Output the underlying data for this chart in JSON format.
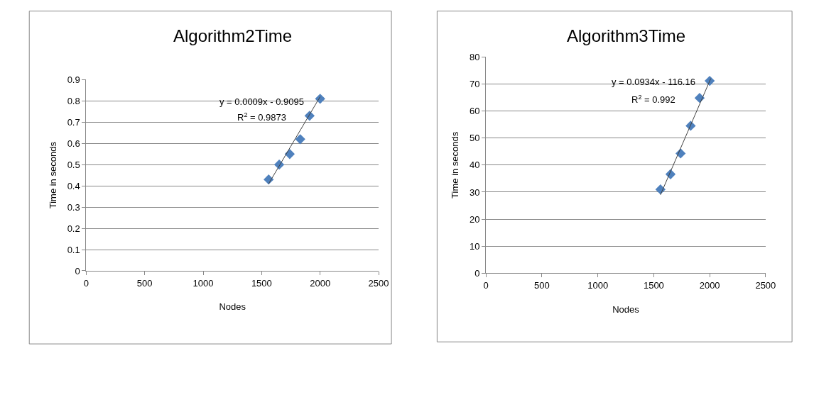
{
  "chart_data": [
    {
      "type": "scatter",
      "title": "Algorithm2Time",
      "xlabel": "Nodes",
      "ylabel": "Time in seconds",
      "xlim": [
        0,
        2500
      ],
      "xticks": [
        0,
        500,
        1000,
        1500,
        2000,
        2500
      ],
      "ylim": [
        0,
        0.9
      ],
      "yticks": [
        0,
        0.1,
        0.2,
        0.3,
        0.4,
        0.5,
        0.6,
        0.7,
        0.8,
        0.9
      ],
      "grid": "y",
      "marker": "diamond",
      "series": [
        {
          "color": "#4f81bd",
          "x": [
            1560,
            1650,
            1740,
            1830,
            1910,
            2000
          ],
          "values": [
            0.43,
            0.5,
            0.55,
            0.62,
            0.73,
            0.81
          ]
        },
        {
          "type": "line",
          "color": "#404040",
          "marker": "none",
          "x": [
            1560,
            2000
          ],
          "values": [
            0.41,
            0.82
          ]
        }
      ],
      "annotations": [
        "y = 0.0009x - 0.9095",
        "R$^{2}$ = 0.9873"
      ]
    },
    {
      "type": "scatter",
      "title": "Algorithm3Time",
      "xlabel": "Nodes",
      "ylabel": "Time in seconds",
      "xlim": [
        0,
        2500
      ],
      "xticks": [
        0,
        500,
        1000,
        1500,
        2000,
        2500
      ],
      "ylim": [
        0,
        80
      ],
      "yticks": [
        0,
        10,
        20,
        30,
        40,
        50,
        60,
        70,
        80
      ],
      "grid": "y",
      "marker": "diamond",
      "series": [
        {
          "color": "#4f81bd",
          "x": [
            1560,
            1650,
            1740,
            1830,
            1910,
            2000
          ],
          "values": [
            31,
            36.6,
            44.3,
            54.5,
            64.8,
            71.1
          ]
        },
        {
          "type": "line",
          "color": "#404040",
          "marker": "none",
          "x": [
            1560,
            2010
          ],
          "values": [
            29,
            72
          ]
        }
      ],
      "annotations": [
        "y = 0.0934x - 116.16",
        "R$^{2}$ = 0.992"
      ]
    }
  ]
}
